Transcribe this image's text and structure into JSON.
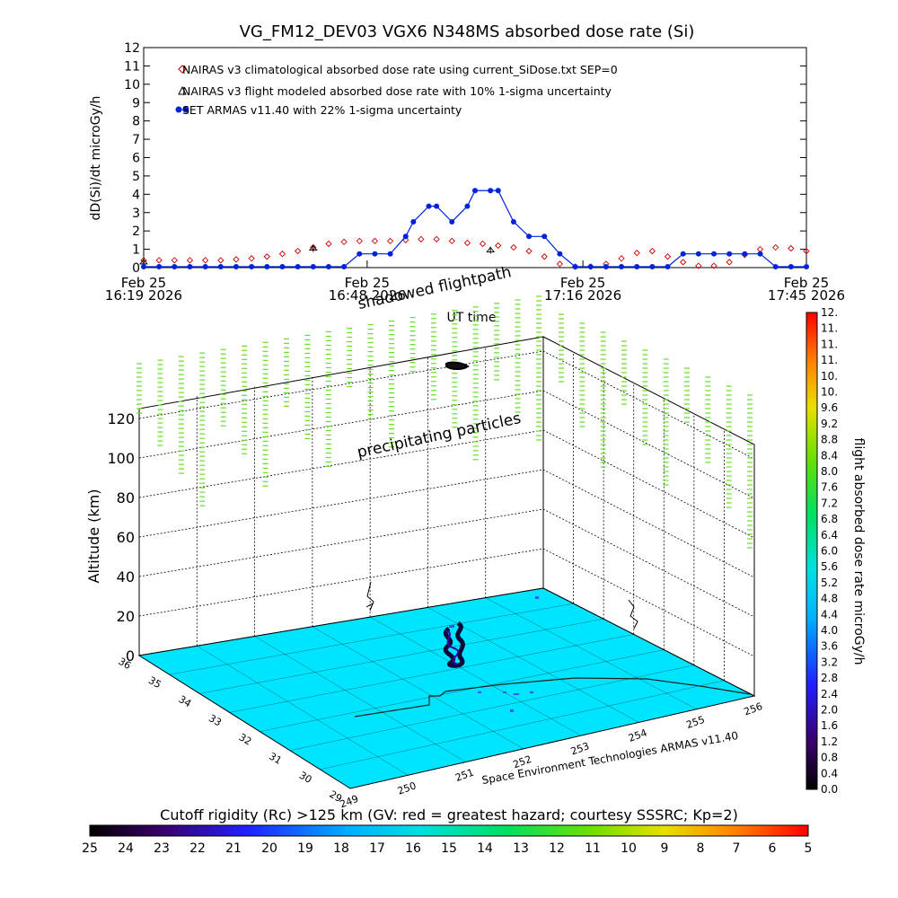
{
  "top": {
    "title": "VG_FM12_DEV03 VGX6 N348MS absorbed dose rate (Si)",
    "ylabel": "dD(Si)/dt microGy/h",
    "xlabel": "UT time",
    "yticks": [
      "0",
      "1",
      "2",
      "3",
      "4",
      "5",
      "6",
      "7",
      "8",
      "9",
      "10",
      "11",
      "12"
    ],
    "xticks": [
      {
        "day": "Feb 25",
        "time": "16:19 2026"
      },
      {
        "day": "Feb 25",
        "time": "16:48 2026"
      },
      {
        "day": "Feb 25",
        "time": "17:16 2026"
      },
      {
        "day": "Feb 25",
        "time": "17:45 2026"
      }
    ],
    "legend": [
      "NAIRAS v3 climatological absorbed dose rate using current_SiDose.txt SEP=0",
      "NAIRAS v3 flight modeled absorbed dose rate with 10% 1-sigma uncertainty",
      "SET ARMAS v11.40 with 22% 1-sigma uncertainty"
    ]
  },
  "chart_data": [
    {
      "type": "line",
      "title": "VG_FM12_DEV03 VGX6 N348MS absorbed dose rate (Si)",
      "xlabel": "UT time",
      "ylabel": "dD(Si)/dt microGy/h",
      "x_unit": "minutes after 16:19 UT, Feb 25 2026",
      "xlim": [
        0,
        86
      ],
      "ylim": [
        0,
        12
      ],
      "series": [
        {
          "name": "NAIRAS v3 climatological absorbed dose rate using current_SiDose.txt SEP=0",
          "marker": "diamond",
          "color": "#cc0000",
          "x": [
            0,
            2,
            4,
            6,
            8,
            10,
            12,
            14,
            16,
            18,
            20,
            22,
            24,
            26,
            28,
            30,
            32,
            34,
            36,
            38,
            40,
            42,
            44,
            46,
            48,
            50,
            52,
            54,
            56,
            58,
            60,
            62,
            64,
            66,
            68,
            70,
            72,
            74,
            76,
            78,
            80,
            82,
            84,
            86
          ],
          "y": [
            0.4,
            0.4,
            0.4,
            0.4,
            0.4,
            0.4,
            0.45,
            0.5,
            0.6,
            0.75,
            0.9,
            1.1,
            1.3,
            1.4,
            1.45,
            1.45,
            1.45,
            1.5,
            1.55,
            1.55,
            1.45,
            1.35,
            1.3,
            1.2,
            1.1,
            0.9,
            0.6,
            0.2,
            0.05,
            0.05,
            0.2,
            0.5,
            0.8,
            0.9,
            0.6,
            0.3,
            0.1,
            0.1,
            0.3,
            0.7,
            1.0,
            1.1,
            1.05,
            0.9
          ]
        },
        {
          "name": "NAIRAS v3 flight modeled absorbed dose rate with 10% 1-sigma uncertainty",
          "marker": "triangle",
          "color": "#000000",
          "x": [
            0,
            22,
            45
          ],
          "y": [
            0.3,
            1.05,
            0.95
          ]
        },
        {
          "name": "SET ARMAS v11.40 with 22% 1-sigma uncertainty",
          "marker": "circle",
          "color": "#0022dd",
          "x": [
            0,
            2,
            4,
            6,
            8,
            10,
            12,
            14,
            16,
            18,
            20,
            22,
            24,
            26,
            28,
            30,
            32,
            34,
            35,
            37,
            38,
            40,
            42,
            43,
            45,
            46,
            48,
            50,
            52,
            54,
            56,
            58,
            60,
            62,
            64,
            66,
            68,
            70,
            72,
            74,
            76,
            78,
            80,
            82,
            84,
            86
          ],
          "y": [
            0.05,
            0.05,
            0.05,
            0.05,
            0.05,
            0.05,
            0.05,
            0.05,
            0.05,
            0.05,
            0.05,
            0.05,
            0.05,
            0.05,
            0.75,
            0.75,
            0.75,
            1.7,
            2.5,
            3.35,
            3.35,
            2.5,
            3.35,
            4.2,
            4.2,
            4.2,
            2.5,
            1.7,
            1.7,
            0.75,
            0.05,
            0.05,
            0.05,
            0.05,
            0.05,
            0.05,
            0.05,
            0.75,
            0.75,
            0.75,
            0.75,
            0.75,
            0.75,
            0.05,
            0.05,
            0.05
          ]
        }
      ]
    },
    {
      "type": "scatter",
      "title": "shadowed flightpath",
      "ylabel": "Altitude (km)",
      "zticks": [
        "0",
        "20",
        "40",
        "60",
        "80",
        "100",
        "120"
      ],
      "lat_ticks": [
        "29",
        "30",
        "31",
        "32",
        "33",
        "34",
        "35",
        "36"
      ],
      "lon_ticks": [
        "249",
        "250",
        "251",
        "252",
        "253",
        "254",
        "255",
        "256"
      ],
      "annotations": [
        "precipitating particles",
        "Space Environment Technologies ARMAS v11.40"
      ],
      "floor_color": "#00e5ff",
      "particle_color": "#66dd22"
    },
    {
      "type": "heatmap",
      "label": "flight absorbed dose rate microGy/h",
      "ticks": [
        "0.0",
        "0.4",
        "0.8",
        "1.2",
        "1.6",
        "2.0",
        "2.4",
        "2.8",
        "3.2",
        "3.6",
        "4.0",
        "4.4",
        "4.8",
        "5.2",
        "5.6",
        "6.0",
        "6.4",
        "6.8",
        "7.2",
        "7.6",
        "8.0",
        "8.4",
        "8.8",
        "9.2",
        "9.6",
        "10.",
        "10.",
        "11.",
        "11.",
        "11.",
        "12."
      ],
      "range": [
        0,
        12
      ]
    },
    {
      "type": "heatmap",
      "label": "Cutoff rigidity (Rc) >125 km (GV: red = greatest hazard; courtesy SSSRC; Kp=2)",
      "ticks": [
        "25",
        "24",
        "23",
        "22",
        "21",
        "20",
        "19",
        "18",
        "17",
        "16",
        "15",
        "14",
        "13",
        "12",
        "11",
        "10",
        "9",
        "8",
        "7",
        "6",
        "5"
      ],
      "range": [
        25,
        5
      ]
    }
  ]
}
